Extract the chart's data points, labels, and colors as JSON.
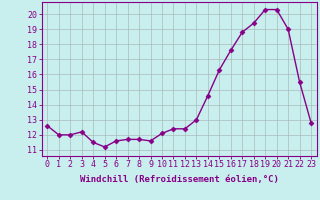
{
  "x": [
    0,
    1,
    2,
    3,
    4,
    5,
    6,
    7,
    8,
    9,
    10,
    11,
    12,
    13,
    14,
    15,
    16,
    17,
    18,
    19,
    20,
    21,
    22,
    23
  ],
  "y": [
    12.6,
    12.0,
    12.0,
    12.2,
    11.5,
    11.2,
    11.6,
    11.7,
    11.7,
    11.6,
    12.1,
    12.4,
    12.4,
    13.0,
    14.6,
    16.3,
    17.6,
    18.8,
    19.4,
    20.3,
    20.3,
    19.0,
    15.5,
    12.8
  ],
  "line_color": "#880088",
  "marker": "D",
  "marker_size": 2.5,
  "bg_color": "#c8eeee",
  "grid_color": "#aabbbb",
  "xlabel": "Windchill (Refroidissement éolien,°C)",
  "ylabel_ticks": [
    11,
    12,
    13,
    14,
    15,
    16,
    17,
    18,
    19,
    20
  ],
  "xlim": [
    -0.5,
    23.5
  ],
  "ylim": [
    10.6,
    20.8
  ],
  "xlabel_fontsize": 6.5,
  "tick_fontsize": 6.0,
  "axis_color": "#880088"
}
